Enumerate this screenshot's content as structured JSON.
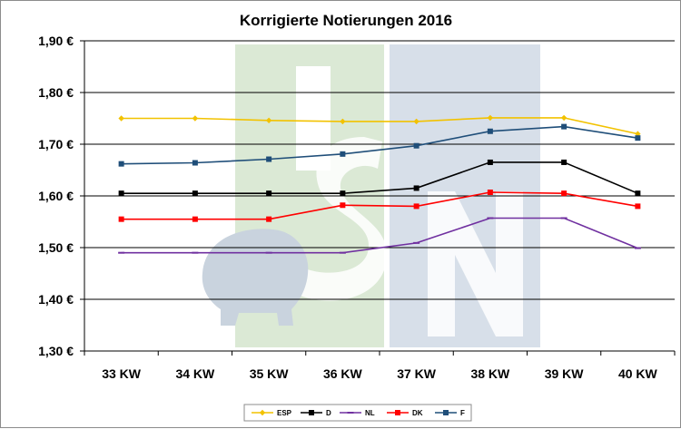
{
  "chart_data": {
    "type": "line",
    "title": "Korrigierte Notierungen 2016",
    "xlabel": "",
    "ylabel": "",
    "categories": [
      "33 KW",
      "34 KW",
      "35 KW",
      "36 KW",
      "37 KW",
      "38 KW",
      "39 KW",
      "40 KW"
    ],
    "ylim": [
      1.3,
      1.9
    ],
    "yticks": [
      1.3,
      1.4,
      1.5,
      1.6,
      1.7,
      1.8,
      1.9
    ],
    "ytick_labels": [
      "1,30 €",
      "1,40 €",
      "1,50 €",
      "1,60 €",
      "1,70 €",
      "1,80 €",
      "1,90 €"
    ],
    "grid": "horizontal",
    "legend_position": "bottom",
    "series": [
      {
        "name": "ESP",
        "color": "#f2c200",
        "marker": "diamond",
        "values": [
          1.75,
          1.75,
          1.746,
          1.744,
          1.744,
          1.751,
          1.751,
          1.72
        ]
      },
      {
        "name": "D",
        "color": "#000000",
        "marker": "square",
        "values": [
          1.605,
          1.605,
          1.605,
          1.605,
          1.615,
          1.665,
          1.665,
          1.605
        ]
      },
      {
        "name": "NL",
        "color": "#7030a0",
        "marker": "dash",
        "values": [
          1.49,
          1.49,
          1.49,
          1.49,
          1.509,
          1.557,
          1.557,
          1.499
        ]
      },
      {
        "name": "DK",
        "color": "#ff0000",
        "marker": "square",
        "values": [
          1.555,
          1.555,
          1.555,
          1.582,
          1.58,
          1.607,
          1.605,
          1.58
        ]
      },
      {
        "name": "F",
        "color": "#1f4e79",
        "marker": "square",
        "values": [
          1.662,
          1.664,
          1.671,
          1.681,
          1.697,
          1.725,
          1.734,
          1.712
        ]
      }
    ]
  },
  "watermark": {
    "type": "logo",
    "text": "ISN",
    "colors": {
      "green": "#dbe9d5",
      "blue": "#d7dfe9",
      "pig": "#c9d3de"
    }
  }
}
